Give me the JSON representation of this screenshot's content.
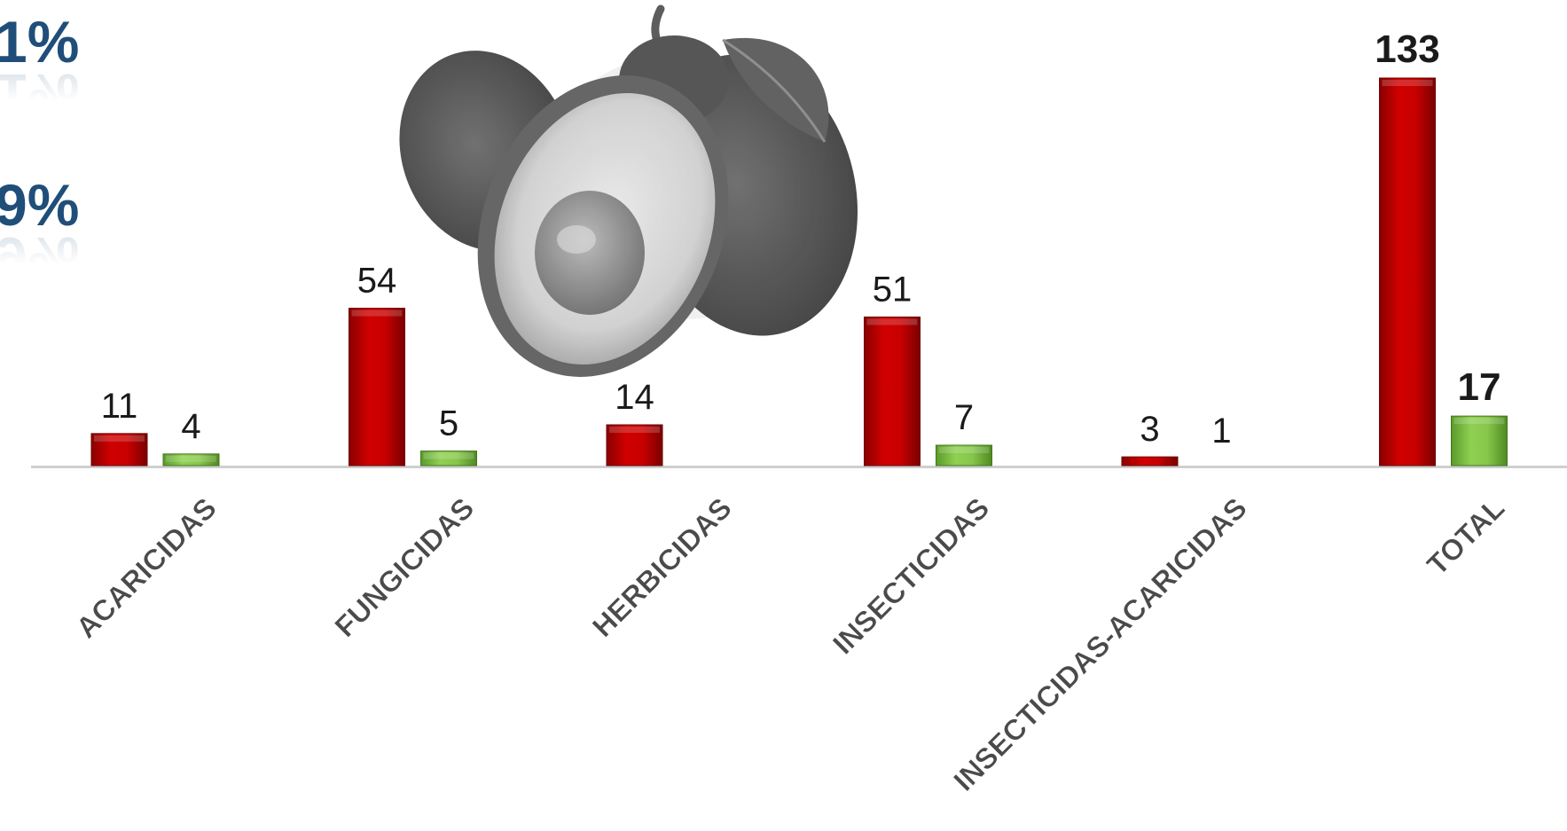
{
  "side_labels": [
    "1%",
    "9%"
  ],
  "colors": {
    "series_a": "#c00000",
    "series_b": "#7dc242",
    "axis": "#cfcfcf",
    "text": "#1a1a1a",
    "pct": "#1f4e79"
  },
  "chart_data": {
    "type": "bar",
    "categories": [
      "ACARICIDAS",
      "FUNGICIDAS",
      "HERBICIDAS",
      "INSECTICIDAS",
      "INSECTICIDAS-ACARICIDAS",
      "TOTAL"
    ],
    "series": [
      {
        "values": [
          11,
          54,
          14,
          51,
          3,
          133
        ]
      },
      {
        "values": [
          4,
          5,
          null,
          7,
          1,
          17
        ]
      }
    ],
    "ylim": [
      0,
      140
    ],
    "grid": false,
    "legend": "none"
  }
}
